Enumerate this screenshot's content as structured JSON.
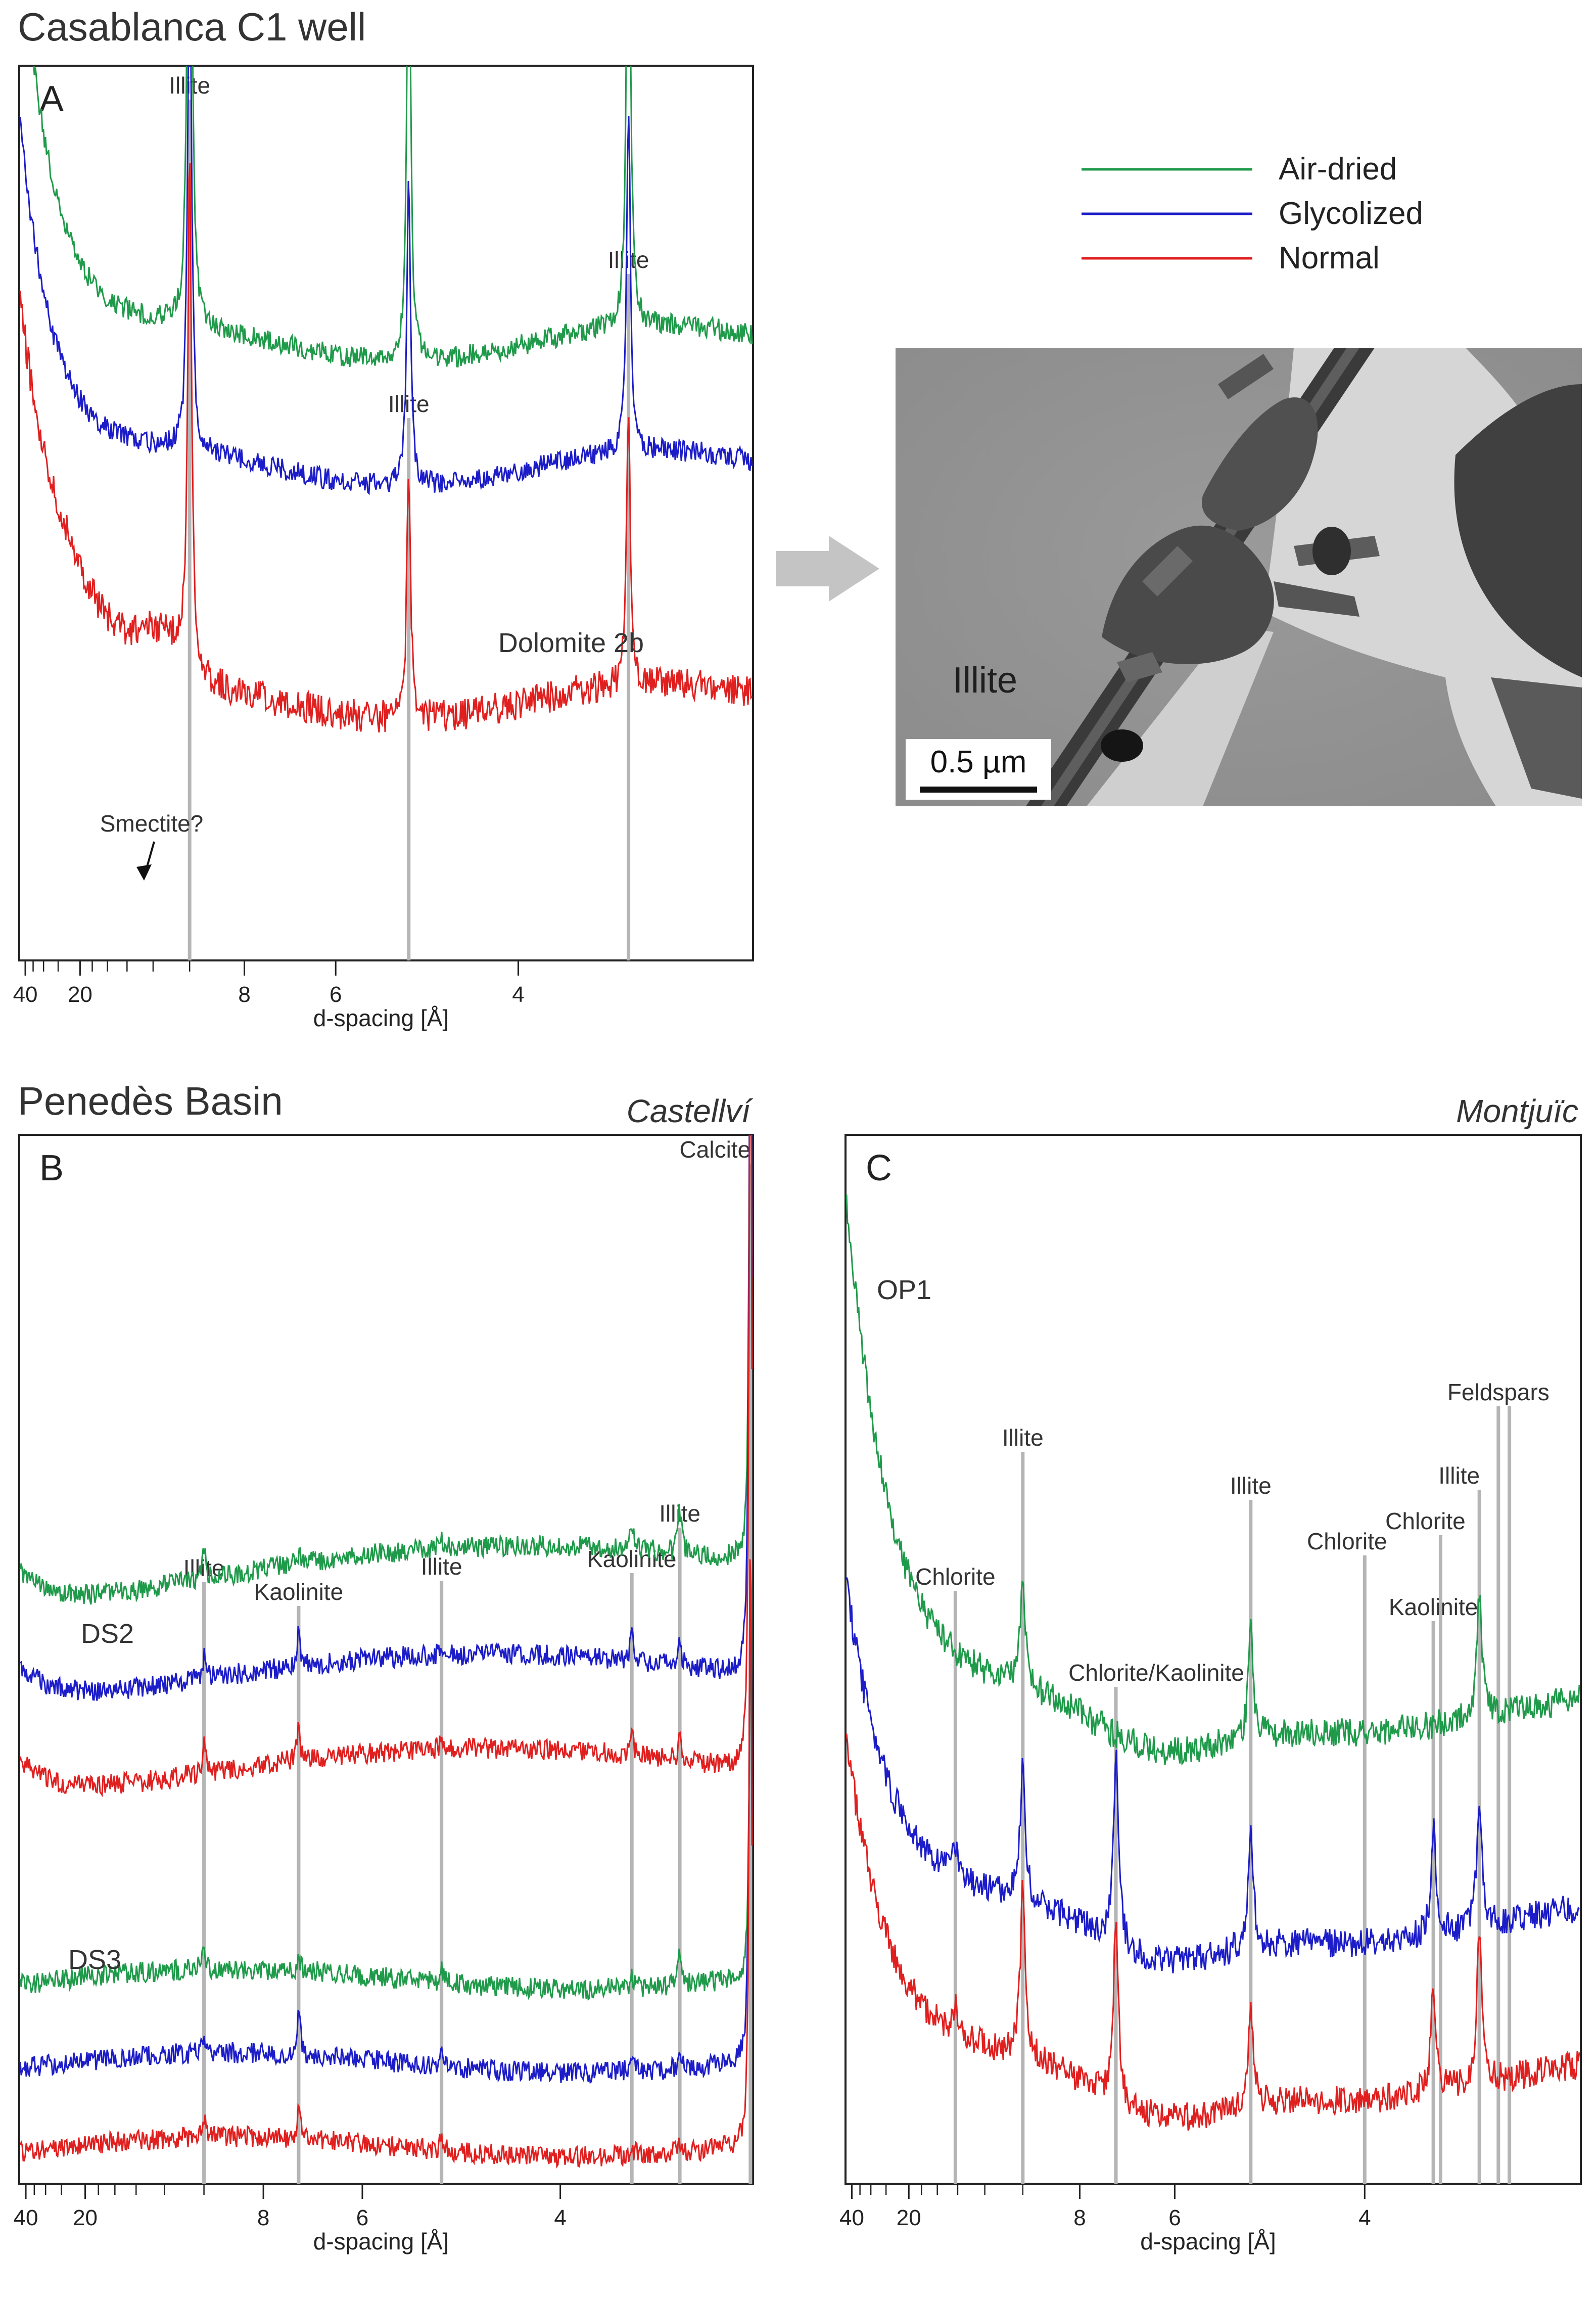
{
  "section_titles": [
    "Casablanca C1 well",
    "Penedès Basin"
  ],
  "legend": [
    {
      "label": "Air-dried",
      "color": "#1f9a4a"
    },
    {
      "label": "Glycolized",
      "color": "#1c1cc8"
    },
    {
      "label": "Normal",
      "color": "#e01f1f"
    }
  ],
  "micrograph": {
    "label": "Illite",
    "scale_bar": "0.5 µm"
  },
  "chart_data": [
    {
      "type": "line",
      "panel": "A",
      "location": "",
      "xlabel": "d-spacing [Å]",
      "ylabel": "",
      "x_scale": "reciprocal",
      "xlim": [
        45,
        2.8
      ],
      "tick_labels": [
        "40",
        "20",
        "8",
        "6",
        "4"
      ],
      "sample_labels": [],
      "annotations": [
        {
          "text": "Dolomite 2b",
          "x": 4.3
        },
        {
          "text": "Smectite?",
          "x": 14
        }
      ],
      "peaks": [
        {
          "label": "Illite",
          "d": 10.0
        },
        {
          "label": "Illite",
          "d": 5.0
        },
        {
          "label": "Illite",
          "d": 3.33
        }
      ],
      "series": [
        {
          "name": "Air-dried",
          "baseline": 0.72,
          "peak_heights": [
            0.82,
            0.53,
            0.6
          ],
          "low_angle": 0.48,
          "noise": 0.012
        },
        {
          "name": "Glycolized",
          "baseline": 0.58,
          "peak_heights": [
            0.6,
            0.34,
            0.39
          ],
          "low_angle": 0.4,
          "noise": 0.012
        },
        {
          "name": "Normal",
          "baseline": 0.38,
          "peak_heights": [
            0.56,
            0.28,
            0.3
          ],
          "low_angle": 0.4,
          "noise": 0.018
        }
      ]
    },
    {
      "type": "line",
      "panel": "B",
      "location": "Castellví",
      "xlabel": "d-spacing [Å]",
      "ylabel": "",
      "x_scale": "reciprocal",
      "xlim": [
        45,
        3.02
      ],
      "tick_labels": [
        "40",
        "20",
        "8",
        "6",
        "4"
      ],
      "sample_labels": [
        "DS2",
        "DS3"
      ],
      "peaks": [
        {
          "label": "Illite",
          "d": 10.0
        },
        {
          "label": "Kaolinite",
          "d": 7.15
        },
        {
          "label": "Illite",
          "d": 5.0
        },
        {
          "label": "Kaolinite",
          "d": 3.57
        },
        {
          "label": "Illite",
          "d": 3.33
        },
        {
          "label": "Calcite",
          "d": 3.03
        }
      ],
      "series": [
        {
          "name": "Air-dried",
          "sample": "DS2",
          "baseline": 0.56
        },
        {
          "name": "Glycolized",
          "sample": "DS2",
          "baseline": 0.47
        },
        {
          "name": "Normal",
          "sample": "DS2",
          "baseline": 0.38
        },
        {
          "name": "Air-dried",
          "sample": "DS3",
          "baseline": 0.19
        },
        {
          "name": "Glycolized",
          "sample": "DS3",
          "baseline": 0.11
        },
        {
          "name": "Normal",
          "sample": "DS3",
          "baseline": 0.03
        }
      ]
    },
    {
      "type": "line",
      "panel": "C",
      "location": "Montjuïc",
      "xlabel": "d-spacing [Å]",
      "ylabel": "",
      "x_scale": "reciprocal",
      "xlim": [
        45,
        2.9
      ],
      "tick_labels": [
        "40",
        "20",
        "8",
        "6",
        "4"
      ],
      "sample_labels": [
        "OP1"
      ],
      "peaks": [
        {
          "label": "Chlorite",
          "d": 14.2
        },
        {
          "label": "Illite",
          "d": 10.0
        },
        {
          "label": "Chlorite/Kaolinite",
          "d": 7.1
        },
        {
          "label": "Illite",
          "d": 5.0
        },
        {
          "label": "Chlorite",
          "d": 4.0
        },
        {
          "label": "Kaolinite",
          "d": 3.57
        },
        {
          "label": "Chlorite",
          "d": 3.53
        },
        {
          "label": "Illite",
          "d": 3.33
        },
        {
          "label": "Feldspars",
          "d": 3.24
        },
        {
          "label": "",
          "d": 3.19
        }
      ],
      "series": [
        {
          "name": "Air-dried",
          "sample": "OP1",
          "baseline": 0.45
        },
        {
          "name": "Glycolized",
          "sample": "OP1",
          "baseline": 0.25
        },
        {
          "name": "Normal",
          "sample": "OP1",
          "baseline": 0.1
        }
      ]
    }
  ]
}
